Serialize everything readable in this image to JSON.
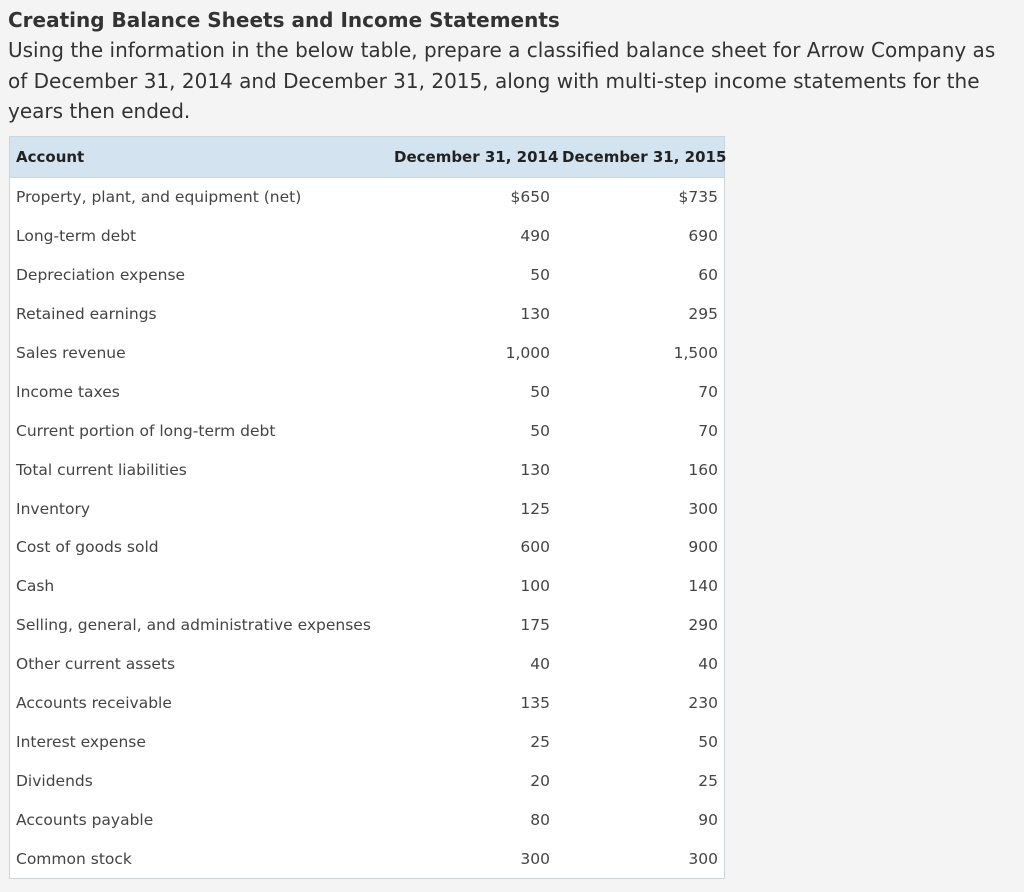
{
  "header": {
    "title": "Creating Balance Sheets and Income Statements",
    "prompt": "Using the information in the below table, prepare a classified balance sheet for Arrow Company as of December 31, 2014 and December 31, 2015, along with multi-step income statements for the years then ended."
  },
  "table": {
    "columns": [
      "Account",
      "December 31, 2014",
      "December 31, 2015"
    ],
    "rows": [
      {
        "account": "Property, plant, and equipment (net)",
        "y2014": "$650",
        "y2015": "$735"
      },
      {
        "account": "Long-term debt",
        "y2014": "490",
        "y2015": "690"
      },
      {
        "account": "Depreciation expense",
        "y2014": "50",
        "y2015": "60"
      },
      {
        "account": "Retained earnings",
        "y2014": "130",
        "y2015": "295"
      },
      {
        "account": "Sales revenue",
        "y2014": "1,000",
        "y2015": "1,500"
      },
      {
        "account": "Income taxes",
        "y2014": "50",
        "y2015": "70"
      },
      {
        "account": "Current portion of long-term debt",
        "y2014": "50",
        "y2015": "70"
      },
      {
        "account": "Total current liabilities",
        "y2014": "130",
        "y2015": "160"
      },
      {
        "account": "Inventory",
        "y2014": "125",
        "y2015": "300"
      },
      {
        "account": "Cost of goods sold",
        "y2014": "600",
        "y2015": "900"
      },
      {
        "account": "Cash",
        "y2014": "100",
        "y2015": "140"
      },
      {
        "account": "Selling, general, and administrative expenses",
        "y2014": "175",
        "y2015": "290"
      },
      {
        "account": "Other current assets",
        "y2014": "40",
        "y2015": "40"
      },
      {
        "account": "Accounts receivable",
        "y2014": "135",
        "y2015": "230"
      },
      {
        "account": "Interest expense",
        "y2014": "25",
        "y2015": "50"
      },
      {
        "account": "Dividends",
        "y2014": "20",
        "y2015": "25"
      },
      {
        "account": "Accounts payable",
        "y2014": "80",
        "y2015": "90"
      },
      {
        "account": "Common stock",
        "y2014": "300",
        "y2015": "300"
      }
    ]
  }
}
